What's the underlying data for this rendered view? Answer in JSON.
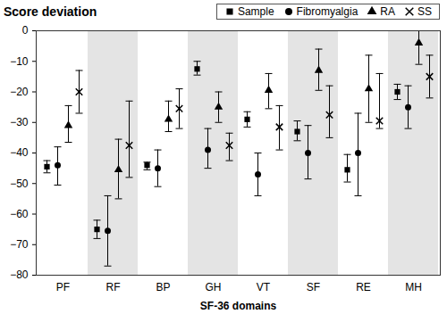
{
  "chart_data": {
    "type": "error_bar",
    "title": "Score deviation",
    "x_label": "SF-36 domains",
    "categories": [
      "PF",
      "RF",
      "BP",
      "GH",
      "VT",
      "SF",
      "RE",
      "MH"
    ],
    "series": [
      {
        "name": "Sample",
        "color": "#000000",
        "marker": "square",
        "values": [
          -44.5,
          -65,
          -44,
          -12.5,
          -29,
          -33,
          -45.5,
          -20
        ],
        "lower": [
          -46.5,
          -68,
          -45.5,
          -14.5,
          -31.5,
          -36,
          -49.5,
          -22.5
        ],
        "upper": [
          -42.5,
          -62,
          -43,
          -10,
          -26.5,
          -29.5,
          -40.5,
          -17.5
        ]
      },
      {
        "name": "Fibromyalgia",
        "color": "#000000",
        "marker": "circle",
        "values": [
          -44,
          -65.5,
          -45,
          -39,
          -47,
          -40,
          -40,
          -25
        ],
        "lower": [
          -50.5,
          -77,
          -51,
          -45,
          -54,
          -48.5,
          -54,
          -32
        ],
        "upper": [
          -38,
          -54,
          -39,
          -32,
          -40,
          -31,
          -27,
          -18
        ]
      },
      {
        "name": "RA",
        "color": "#000000",
        "marker": "triangle",
        "values": [
          -31,
          -45.5,
          -29,
          -25,
          -19.5,
          -13,
          -19,
          -4
        ],
        "lower": [
          -36.5,
          -55,
          -33,
          -30,
          -25.5,
          -19.5,
          -30,
          -11
        ],
        "upper": [
          -24.5,
          -35.5,
          -23,
          -20,
          -14,
          -6,
          -8,
          2
        ]
      },
      {
        "name": "SS",
        "color": "#000000",
        "marker": "cross",
        "values": [
          -20,
          -37.5,
          -25.5,
          -37.5,
          -31.5,
          -27.5,
          -29.5,
          -15
        ],
        "lower": [
          -27,
          -48,
          -32,
          -42.5,
          -39,
          -35,
          -32,
          -22
        ],
        "upper": [
          -13,
          -23,
          -19,
          -33.5,
          -24.5,
          -18,
          -14,
          -8
        ]
      }
    ],
    "ylim": [
      -80,
      0
    ],
    "yticks": [
      -80,
      -70,
      -60,
      -50,
      -40,
      -30,
      -20,
      -10,
      0
    ],
    "legend": "top"
  }
}
